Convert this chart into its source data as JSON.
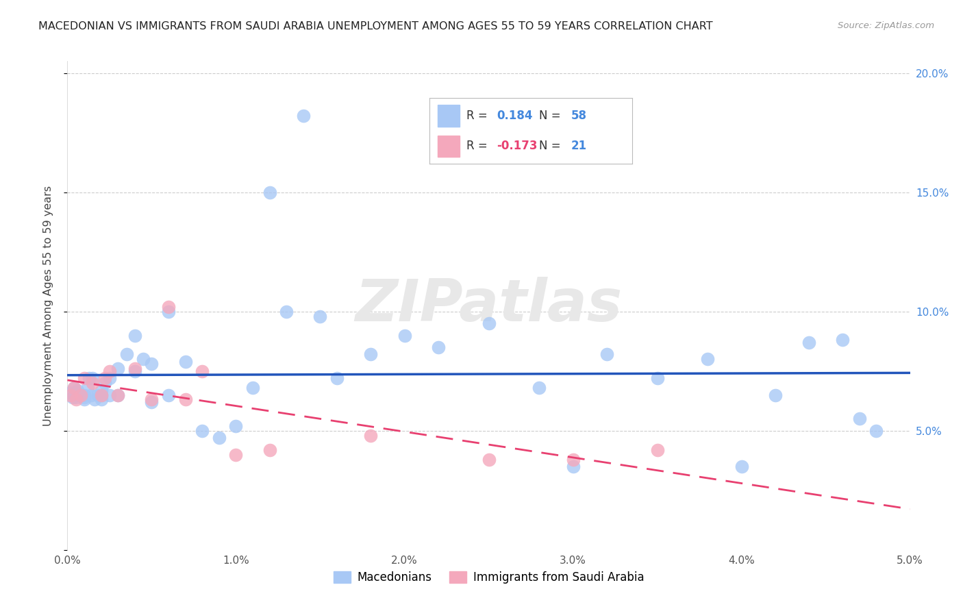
{
  "title": "MACEDONIAN VS IMMIGRANTS FROM SAUDI ARABIA UNEMPLOYMENT AMONG AGES 55 TO 59 YEARS CORRELATION CHART",
  "source": "Source: ZipAtlas.com",
  "ylabel": "Unemployment Among Ages 55 to 59 years",
  "label_macedonians": "Macedonians",
  "label_immigrants": "Immigrants from Saudi Arabia",
  "x_min": 0.0,
  "x_max": 0.05,
  "y_min": 0.0,
  "y_max": 0.205,
  "r_macedonian": "0.184",
  "n_macedonian": "58",
  "r_immigrant": "-0.173",
  "n_immigrant": "21",
  "macedonian_color": "#a8c8f5",
  "macedonian_line_color": "#2255bb",
  "immigrant_color": "#f4a8bc",
  "immigrant_line_color": "#e84070",
  "watermark": "ZIPatlas",
  "macedonian_x": [
    0.0002,
    0.0003,
    0.0004,
    0.0005,
    0.0005,
    0.0006,
    0.0007,
    0.0008,
    0.001,
    0.001,
    0.001,
    0.0012,
    0.0013,
    0.0014,
    0.0015,
    0.0016,
    0.0018,
    0.002,
    0.002,
    0.002,
    0.0022,
    0.0025,
    0.0025,
    0.003,
    0.003,
    0.0035,
    0.004,
    0.004,
    0.0045,
    0.005,
    0.005,
    0.006,
    0.006,
    0.007,
    0.008,
    0.009,
    0.01,
    0.011,
    0.012,
    0.013,
    0.014,
    0.015,
    0.016,
    0.018,
    0.02,
    0.022,
    0.025,
    0.028,
    0.03,
    0.032,
    0.035,
    0.038,
    0.04,
    0.042,
    0.044,
    0.046,
    0.047,
    0.048
  ],
  "macedonian_y": [
    0.066,
    0.064,
    0.068,
    0.066,
    0.064,
    0.067,
    0.065,
    0.065,
    0.064,
    0.065,
    0.063,
    0.068,
    0.072,
    0.065,
    0.072,
    0.063,
    0.065,
    0.065,
    0.067,
    0.063,
    0.07,
    0.072,
    0.065,
    0.065,
    0.076,
    0.082,
    0.075,
    0.09,
    0.08,
    0.078,
    0.062,
    0.1,
    0.065,
    0.079,
    0.05,
    0.047,
    0.052,
    0.068,
    0.15,
    0.1,
    0.182,
    0.098,
    0.072,
    0.082,
    0.09,
    0.085,
    0.095,
    0.068,
    0.035,
    0.082,
    0.072,
    0.08,
    0.035,
    0.065,
    0.087,
    0.088,
    0.055,
    0.05
  ],
  "immigrant_x": [
    0.0002,
    0.0004,
    0.0005,
    0.0008,
    0.001,
    0.0015,
    0.002,
    0.0022,
    0.0025,
    0.003,
    0.004,
    0.005,
    0.006,
    0.007,
    0.008,
    0.01,
    0.012,
    0.018,
    0.025,
    0.03,
    0.035
  ],
  "immigrant_y": [
    0.065,
    0.068,
    0.063,
    0.065,
    0.072,
    0.07,
    0.065,
    0.072,
    0.075,
    0.065,
    0.076,
    0.063,
    0.102,
    0.063,
    0.075,
    0.04,
    0.042,
    0.048,
    0.038,
    0.038,
    0.042
  ],
  "yticks": [
    0.0,
    0.05,
    0.1,
    0.15,
    0.2
  ],
  "ytick_labels_right": [
    "",
    "5.0%",
    "10.0%",
    "15.0%",
    "20.0%"
  ],
  "xticks": [
    0.0,
    0.01,
    0.02,
    0.03,
    0.04,
    0.05
  ],
  "xtick_labels": [
    "0.0%",
    "1.0%",
    "2.0%",
    "3.0%",
    "4.0%",
    "5.0%"
  ]
}
